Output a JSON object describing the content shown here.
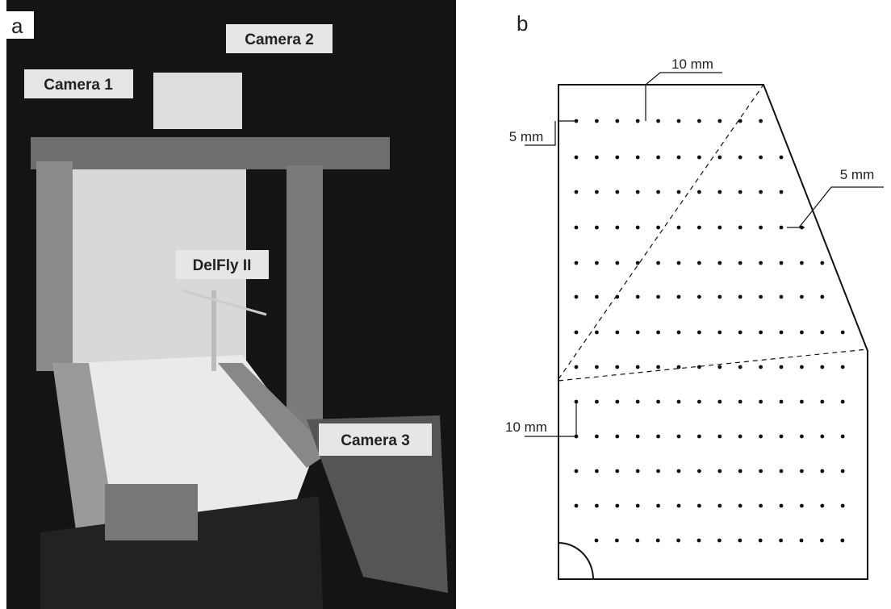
{
  "panels": {
    "a": {
      "label": "a",
      "callouts": [
        "Camera 1",
        "Camera 2",
        "DelFly II",
        "Camera 3"
      ]
    },
    "b": {
      "label": "b",
      "dimensions": [
        "10 mm",
        "5 mm",
        "5 mm",
        "10 mm"
      ]
    }
  }
}
